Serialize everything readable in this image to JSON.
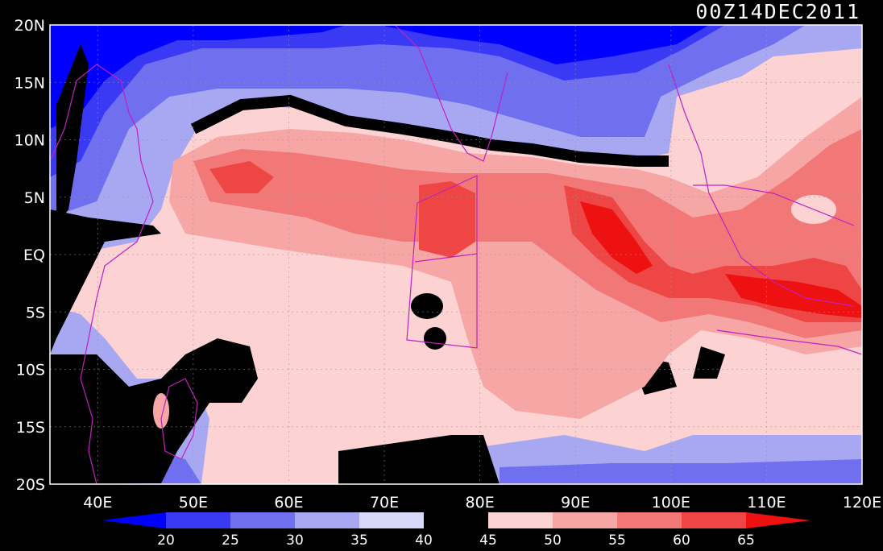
{
  "title": "00Z14DEC2011",
  "map": {
    "lat_labels": [
      "20N",
      "15N",
      "10N",
      "5N",
      "EQ",
      "5S",
      "10S",
      "15S",
      "20S"
    ],
    "lon_labels": [
      "40E",
      "50E",
      "60E",
      "70E",
      "80E",
      "90E",
      "100E",
      "110E",
      "120E"
    ],
    "lon_range": [
      35,
      120
    ],
    "lat_range": [
      -20,
      20
    ]
  },
  "colorbar": {
    "levels": [
      "20",
      "25",
      "30",
      "35",
      "40",
      "45",
      "50",
      "55",
      "60",
      "65"
    ],
    "colors": [
      "#0000ff",
      "#3a3af5",
      "#6f6ff0",
      "#a7a7f2",
      "#d8d8fb",
      "#000000",
      "#fcd2d2",
      "#f7a6a6",
      "#f27878",
      "#ee4545",
      "#ee1111"
    ]
  }
}
